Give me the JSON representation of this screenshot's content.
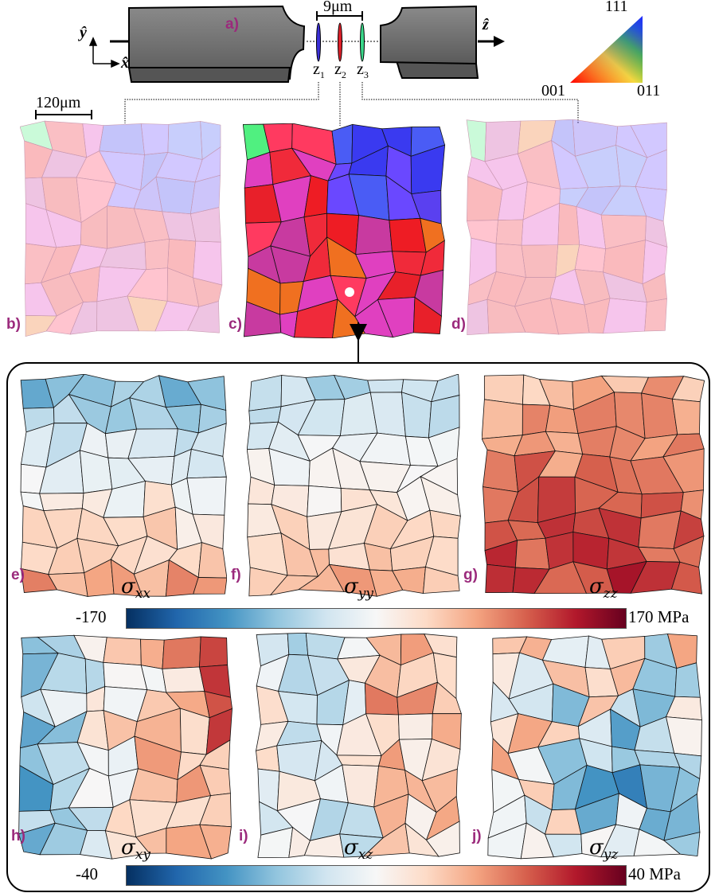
{
  "panel_a": {
    "label": "a)",
    "spacing_label": "9μm",
    "slices": [
      {
        "name": "z",
        "sub": "1",
        "color": "#3b2fd8"
      },
      {
        "name": "z",
        "sub": "2",
        "color": "#e0202a"
      },
      {
        "name": "z",
        "sub": "3",
        "color": "#3ad88a"
      }
    ],
    "axes": {
      "y": "ŷ",
      "x": "x̂",
      "z": "ẑ"
    },
    "ipf": {
      "top": "111",
      "left": "001",
      "right": "011"
    },
    "scale_bar": "120μm"
  },
  "orientation_maps": [
    {
      "label": "b)",
      "slice": "z1",
      "faded": true
    },
    {
      "label": "c)",
      "slice": "z2",
      "faded": false
    },
    {
      "label": "d)",
      "slice": "z3",
      "faded": true
    }
  ],
  "stress_maps": [
    {
      "label": "e)",
      "symbol": "σ",
      "sub": "xx"
    },
    {
      "label": "f)",
      "symbol": "σ",
      "sub": "yy"
    },
    {
      "label": "g)",
      "symbol": "σ",
      "sub": "zz"
    },
    {
      "label": "h)",
      "symbol": "σ",
      "sub": "xy"
    },
    {
      "label": "i)",
      "symbol": "σ",
      "sub": "xz"
    },
    {
      "label": "j)",
      "symbol": "σ",
      "sub": "yz"
    }
  ],
  "colorbars": [
    {
      "min": "-170",
      "max": "170 MPa"
    },
    {
      "min": "-40",
      "max": "40 MPa"
    }
  ],
  "colors": {
    "panel_label": "#9b2a7c",
    "colormap": [
      "#053061",
      "#2166ac",
      "#4393c3",
      "#92c5de",
      "#d1e5f0",
      "#f7f7f7",
      "#fddbc7",
      "#f4a582",
      "#d6604d",
      "#b2182b",
      "#67001f"
    ]
  }
}
